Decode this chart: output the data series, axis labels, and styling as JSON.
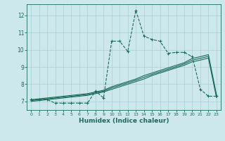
{
  "xlabel": "Humidex (Indice chaleur)",
  "bg_color": "#cce8ec",
  "line_color": "#1a6b5a",
  "grid_color": "#aacdd4",
  "xlim": [
    -0.5,
    23.5
  ],
  "ylim": [
    6.5,
    12.65
  ],
  "xticks": [
    0,
    1,
    2,
    3,
    4,
    5,
    6,
    7,
    8,
    9,
    10,
    11,
    12,
    13,
    14,
    15,
    16,
    17,
    18,
    19,
    20,
    21,
    22,
    23
  ],
  "yticks": [
    7,
    8,
    9,
    10,
    11,
    12
  ],
  "main_x": [
    0,
    1,
    2,
    3,
    4,
    5,
    6,
    7,
    8,
    9,
    10,
    11,
    12,
    13,
    14,
    15,
    16,
    17,
    18,
    19,
    20,
    21,
    22,
    23
  ],
  "main_y": [
    7.1,
    7.1,
    7.1,
    6.9,
    6.9,
    6.9,
    6.9,
    6.9,
    7.6,
    7.2,
    10.5,
    10.5,
    9.9,
    12.3,
    10.8,
    10.6,
    10.5,
    9.8,
    9.85,
    9.85,
    9.6,
    7.7,
    7.3,
    7.3
  ],
  "line1_x": [
    0,
    1,
    2,
    3,
    4,
    5,
    6,
    7,
    8,
    9,
    10,
    11,
    12,
    13,
    14,
    15,
    16,
    17,
    18,
    19,
    20,
    21,
    22,
    23
  ],
  "line1_y": [
    7.05,
    7.1,
    7.15,
    7.2,
    7.25,
    7.3,
    7.35,
    7.4,
    7.5,
    7.6,
    7.78,
    7.93,
    8.08,
    8.23,
    8.4,
    8.57,
    8.72,
    8.87,
    9.02,
    9.18,
    9.4,
    9.5,
    9.62,
    7.3
  ],
  "line2_x": [
    0,
    1,
    2,
    3,
    4,
    5,
    6,
    7,
    8,
    9,
    10,
    11,
    12,
    13,
    14,
    15,
    16,
    17,
    18,
    19,
    20,
    21,
    22,
    23
  ],
  "line2_y": [
    7.0,
    7.05,
    7.1,
    7.15,
    7.2,
    7.25,
    7.3,
    7.35,
    7.45,
    7.55,
    7.7,
    7.85,
    8.0,
    8.15,
    8.3,
    8.5,
    8.65,
    8.8,
    8.95,
    9.1,
    9.3,
    9.4,
    9.52,
    7.22
  ],
  "line3_x": [
    0,
    1,
    2,
    3,
    4,
    5,
    6,
    7,
    8,
    9,
    10,
    11,
    12,
    13,
    14,
    15,
    16,
    17,
    18,
    19,
    20,
    21,
    22,
    23
  ],
  "line3_y": [
    7.1,
    7.15,
    7.2,
    7.25,
    7.3,
    7.35,
    7.4,
    7.45,
    7.55,
    7.65,
    7.85,
    8.0,
    8.15,
    8.3,
    8.5,
    8.65,
    8.8,
    8.95,
    9.1,
    9.25,
    9.5,
    9.6,
    9.72,
    7.38
  ]
}
